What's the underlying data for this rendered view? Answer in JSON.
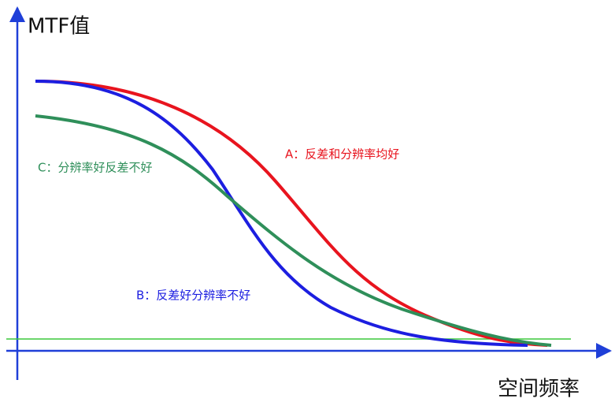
{
  "y_axis_label": "MTF值",
  "x_axis_label": "空间频率",
  "curves": [
    {
      "label": "A：反差和分辨率均好"
    },
    {
      "label": "B：反差好分辨率不好"
    },
    {
      "label": "C：分辨率好反差不好"
    }
  ]
}
